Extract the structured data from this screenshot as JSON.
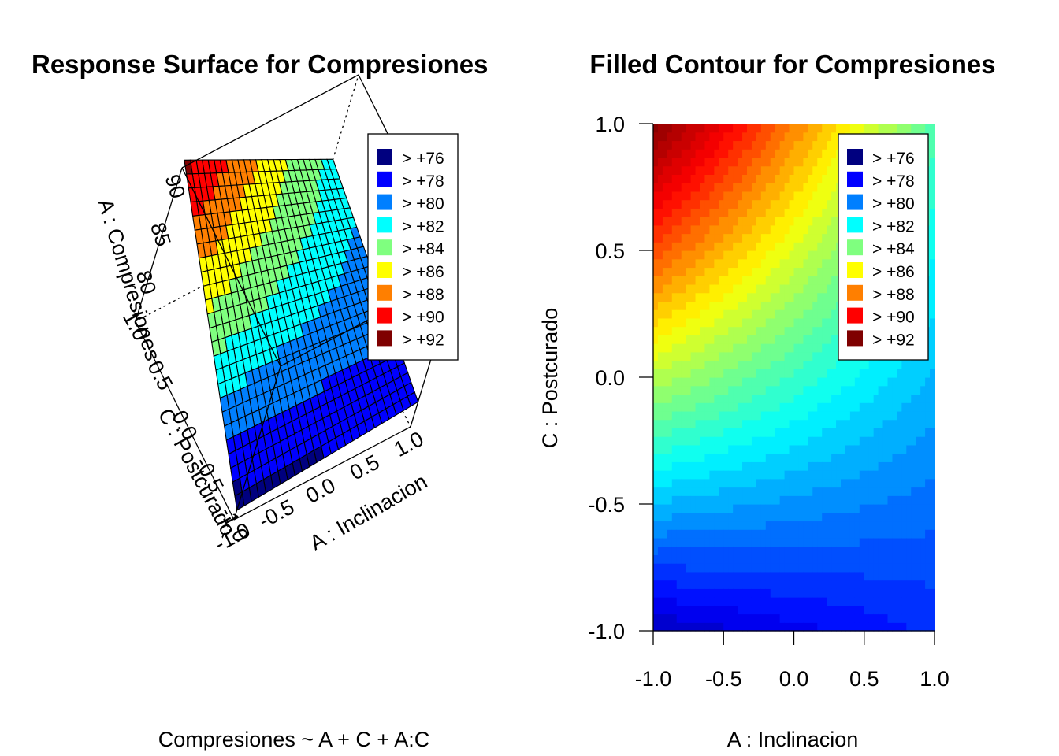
{
  "chart_data": [
    {
      "type": "surface3d",
      "title": "Response Surface for Compresiones",
      "subtitle": "Compresiones ~ A + C + A:C",
      "xlabel": "A : Inclinacion",
      "ylabel": "C : Postcurado",
      "zlabel": "A : Compresiones",
      "x_ticks": [
        "-1.0",
        "-0.5",
        "0.0",
        "0.5",
        "1.0"
      ],
      "y_ticks": [
        "-1.0",
        "-0.5",
        "0.0",
        "0.5",
        "1.0"
      ],
      "z_ticks": [
        "80",
        "85",
        "90"
      ],
      "xlim": [
        -1,
        1
      ],
      "ylim": [
        -1,
        1
      ],
      "zlim": [
        76,
        92
      ],
      "grid_n": 25,
      "legend": {
        "placement": "top-right",
        "entries": [
          "> +76",
          "> +78",
          "> +80",
          "> +82",
          "> +84",
          "> +86",
          "> +88",
          "> +90",
          "> +92"
        ],
        "colors": [
          "#00007F",
          "#0000FF",
          "#007FFF",
          "#00FFFF",
          "#7FFF7F",
          "#FFFF00",
          "#FF7F00",
          "#FF0000",
          "#7F0000"
        ]
      },
      "surface": {
        "corner_values": {
          "a_-1_c_-1": 77,
          "a_1_c_-1": 78.6,
          "a_-1_c_1": 92.8,
          "a_1_c_1": 83.2
        }
      }
    },
    {
      "type": "filled_contour",
      "title": "Filled Contour for Compresiones",
      "xlabel": "A :  Inclinacion",
      "ylabel": "C :  Postcurado",
      "x_ticks": [
        "-1.0",
        "-0.5",
        "0.0",
        "0.5",
        "1.0"
      ],
      "y_ticks": [
        "-1.0",
        "-0.5",
        "0.0",
        "0.5",
        "1.0"
      ],
      "xlim": [
        -1,
        1
      ],
      "ylim": [
        -1,
        1
      ],
      "grid_n": 60,
      "legend": {
        "placement": "top-right",
        "entries": [
          "> +76",
          "> +78",
          "> +80",
          "> +82",
          "> +84",
          "> +86",
          "> +88",
          "> +90",
          "> +92"
        ],
        "colors": [
          "#00007F",
          "#0000FF",
          "#007FFF",
          "#00FFFF",
          "#7FFF7F",
          "#FFFF00",
          "#FF7F00",
          "#FF0000",
          "#7F0000"
        ]
      },
      "surface": {
        "corner_values": {
          "a_-1_c_-1": 77,
          "a_1_c_-1": 78.6,
          "a_-1_c_1": 92.8,
          "a_1_c_1": 83.2
        }
      }
    }
  ]
}
